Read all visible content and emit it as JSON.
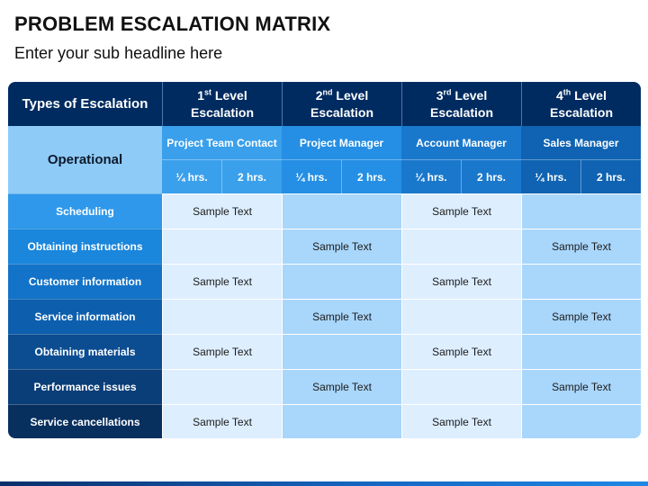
{
  "slide": {
    "title": "PROBLEM ESCALATION MATRIX",
    "subtitle": "Enter your sub headline here"
  },
  "header": {
    "types_label": "Types of Escalation",
    "levels": [
      {
        "num": "1",
        "sup": "st",
        "word": " Level",
        "sub": "Escalation"
      },
      {
        "num": "2",
        "sup": "nd",
        "word": " Level",
        "sub": "Escalation"
      },
      {
        "num": "3",
        "sup": "rd",
        "word": " Level",
        "sub": "Escalation"
      },
      {
        "num": "4",
        "sup": "th",
        "word": " Level",
        "sub": "Escalation"
      }
    ]
  },
  "operational": {
    "label": "Operational",
    "roles": [
      "Project Team Contact",
      "Project Manager",
      "Account Manager",
      "Sales Manager"
    ],
    "times": [
      "¼ hrs.",
      "2 hrs.",
      "¼ hrs.",
      "2 hrs.",
      "¼ hrs.",
      "2 hrs.",
      "¼ hrs.",
      "2 hrs."
    ]
  },
  "rows": [
    {
      "label": "Scheduling",
      "cells": [
        "Sample Text",
        "",
        "Sample Text",
        ""
      ]
    },
    {
      "label": "Obtaining instructions",
      "cells": [
        "",
        "Sample Text",
        "",
        "Sample Text"
      ]
    },
    {
      "label": "Customer information",
      "cells": [
        "Sample Text",
        "",
        "Sample Text",
        ""
      ]
    },
    {
      "label": "Service information",
      "cells": [
        "",
        "Sample Text",
        "",
        "Sample Text"
      ]
    },
    {
      "label": "Obtaining materials",
      "cells": [
        "Sample Text",
        "",
        "Sample Text",
        ""
      ]
    },
    {
      "label": "Performance issues",
      "cells": [
        "",
        "Sample Text",
        "",
        "Sample Text"
      ]
    },
    {
      "label": "Service cancellations",
      "cells": [
        "Sample Text",
        "",
        "Sample Text",
        ""
      ]
    }
  ],
  "colors": {
    "header_navy": "#002b60",
    "operational_light": "#8fcbf7",
    "role_shades": [
      "#3aa0ec",
      "#248fe4",
      "#1a78cc",
      "#0f63b2"
    ],
    "time_shades": [
      "#3aa0ec",
      "#248fe4",
      "#1a78cc",
      "#0f63b2"
    ],
    "row_label_shades": [
      "#2f98ea",
      "#1a86dc",
      "#1373c8",
      "#0d5fae",
      "#0c4d92",
      "#0a3e78",
      "#08305f"
    ],
    "data_column_shades": [
      "#ddeeff",
      "#a9d6fb",
      "#ddeeff",
      "#a9d6fb"
    ]
  }
}
